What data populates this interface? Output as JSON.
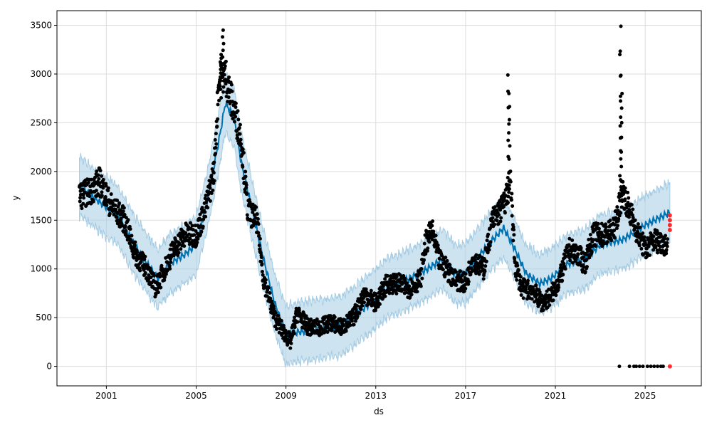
{
  "chart_data": {
    "type": "line",
    "title": "",
    "xlabel": "ds",
    "ylabel": "y",
    "xlim": [
      1998.8,
      2027.5
    ],
    "ylim": [
      -200,
      3650
    ],
    "xticks": [
      2001,
      2005,
      2009,
      2013,
      2017,
      2021,
      2025
    ],
    "xtick_labels": [
      "2001",
      "2005",
      "2009",
      "2013",
      "2017",
      "2021",
      "2025"
    ],
    "yticks": [
      0,
      500,
      1000,
      1500,
      2000,
      2500,
      3000,
      3500
    ],
    "ytick_labels": [
      "0",
      "500",
      "1000",
      "1500",
      "2000",
      "2500",
      "3000",
      "3500"
    ],
    "grid": true,
    "colors": {
      "forecast": "#0072B2",
      "band": "#A6CCE3",
      "observed": "#000000",
      "highlight": "#FF0000"
    },
    "forecast_yhat": [
      [
        1999.8,
        1850
      ],
      [
        2000.5,
        1720
      ],
      [
        2001.5,
        1550
      ],
      [
        2002.5,
        1150
      ],
      [
        2003.3,
        900
      ],
      [
        2003.8,
        1050
      ],
      [
        2004.5,
        1150
      ],
      [
        2005.0,
        1250
      ],
      [
        2005.5,
        1700
      ],
      [
        2006.0,
        2300
      ],
      [
        2006.3,
        2700
      ],
      [
        2006.7,
        2550
      ],
      [
        2007.0,
        2100
      ],
      [
        2007.5,
        1600
      ],
      [
        2008.0,
        1100
      ],
      [
        2008.5,
        650
      ],
      [
        2009.0,
        320
      ],
      [
        2009.5,
        350
      ],
      [
        2010.5,
        380
      ],
      [
        2011.5,
        420
      ],
      [
        2012.5,
        600
      ],
      [
        2013.5,
        800
      ],
      [
        2014.5,
        900
      ],
      [
        2015.3,
        1000
      ],
      [
        2016.0,
        1100
      ],
      [
        2016.5,
        950
      ],
      [
        2017.0,
        950
      ],
      [
        2017.5,
        1100
      ],
      [
        2018.0,
        1250
      ],
      [
        2018.7,
        1420
      ],
      [
        2019.2,
        1200
      ],
      [
        2019.7,
        950
      ],
      [
        2020.3,
        850
      ],
      [
        2020.8,
        900
      ],
      [
        2021.5,
        1050
      ],
      [
        2022.3,
        1100
      ],
      [
        2023.0,
        1250
      ],
      [
        2024.0,
        1300
      ],
      [
        2025.0,
        1450
      ],
      [
        2026.1,
        1580
      ]
    ],
    "uncertainty_halfwidth": 300,
    "observed": [
      [
        1999.8,
        1750
      ],
      [
        2000.3,
        1800
      ],
      [
        2000.7,
        1900
      ],
      [
        2001.2,
        1650
      ],
      [
        2001.8,
        1500
      ],
      [
        2002.3,
        1150
      ],
      [
        2002.8,
        1000
      ],
      [
        2003.2,
        800
      ],
      [
        2003.5,
        950
      ],
      [
        2004.0,
        1200
      ],
      [
        2004.5,
        1350
      ],
      [
        2005.0,
        1350
      ],
      [
        2005.4,
        1600
      ],
      [
        2005.8,
        2000
      ],
      [
        2006.0,
        2900
      ],
      [
        2006.3,
        3000
      ],
      [
        2006.6,
        2700
      ],
      [
        2007.0,
        2350
      ],
      [
        2007.3,
        1600
      ],
      [
        2007.7,
        1500
      ],
      [
        2008.0,
        900
      ],
      [
        2008.5,
        500
      ],
      [
        2008.9,
        350
      ],
      [
        2009.2,
        250
      ],
      [
        2009.5,
        550
      ],
      [
        2010.0,
        400
      ],
      [
        2010.5,
        400
      ],
      [
        2011.0,
        450
      ],
      [
        2011.5,
        400
      ],
      [
        2012.0,
        500
      ],
      [
        2012.5,
        750
      ],
      [
        2013.0,
        650
      ],
      [
        2013.5,
        850
      ],
      [
        2014.0,
        850
      ],
      [
        2014.5,
        800
      ],
      [
        2015.0,
        900
      ],
      [
        2015.2,
        1250
      ],
      [
        2015.5,
        1400
      ],
      [
        2015.8,
        1100
      ],
      [
        2016.5,
        900
      ],
      [
        2017.0,
        850
      ],
      [
        2017.3,
        1100
      ],
      [
        2017.8,
        1000
      ],
      [
        2018.2,
        1500
      ],
      [
        2018.7,
        1650
      ],
      [
        2019.0,
        1900
      ],
      [
        2019.2,
        1050
      ],
      [
        2019.5,
        800
      ],
      [
        2020.0,
        780
      ],
      [
        2020.4,
        650
      ],
      [
        2020.8,
        720
      ],
      [
        2021.2,
        900
      ],
      [
        2021.6,
        1200
      ],
      [
        2022.0,
        1150
      ],
      [
        2022.3,
        1050
      ],
      [
        2022.7,
        1350
      ],
      [
        2023.2,
        1350
      ],
      [
        2023.6,
        1400
      ],
      [
        2024.0,
        1800
      ],
      [
        2024.3,
        1600
      ],
      [
        2024.7,
        1350
      ],
      [
        2025.0,
        1200
      ],
      [
        2025.4,
        1300
      ],
      [
        2026.0,
        1250
      ]
    ],
    "spikes": [
      [
        2006.2,
        3450
      ],
      [
        2006.1,
        3200
      ],
      [
        2018.9,
        2990
      ],
      [
        2018.95,
        2800
      ],
      [
        2023.9,
        3490
      ],
      [
        2023.9,
        3200
      ],
      [
        2023.95,
        2800
      ]
    ],
    "zero_points": [
      2023.85,
      2024.3,
      2024.5,
      2024.6,
      2024.75,
      2024.9,
      2025.1,
      2025.25,
      2025.4,
      2025.55,
      2025.7,
      2025.8
    ],
    "highlight_points": [
      [
        2026.1,
        1550
      ],
      [
        2026.1,
        1500
      ],
      [
        2026.1,
        1450
      ],
      [
        2026.1,
        1400
      ],
      [
        2026.1,
        0
      ]
    ]
  }
}
